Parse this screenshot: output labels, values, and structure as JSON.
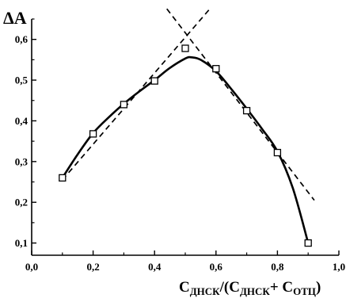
{
  "chart_data": {
    "type": "scatter",
    "ylabel": "ΔA",
    "xlabel_parts": {
      "c1": "C",
      "s1": "ДНСК",
      "mid": "/(C",
      "s2": "ДНСК",
      "plus": "+ C",
      "s3": "ОТЦ",
      "end": ")"
    },
    "xlim": [
      0.0,
      1.0
    ],
    "ylim": [
      0.07,
      0.65
    ],
    "x_ticks": [
      "0,0",
      "0,2",
      "0,4",
      "0,6",
      "0,8",
      "1,0"
    ],
    "x_tick_values": [
      0.0,
      0.2,
      0.4,
      0.6,
      0.8,
      1.0
    ],
    "y_ticks": [
      "0,1",
      "0,2",
      "0,3",
      "0,4",
      "0,5",
      "0,6"
    ],
    "y_tick_values": [
      0.1,
      0.2,
      0.3,
      0.4,
      0.5,
      0.6
    ],
    "series": [
      {
        "marker": "open-square",
        "x": [
          0.1,
          0.2,
          0.3,
          0.4,
          0.5,
          0.6,
          0.7,
          0.8,
          0.9
        ],
        "y": [
          0.26,
          0.368,
          0.44,
          0.498,
          0.578,
          0.528,
          0.425,
          0.322,
          0.1
        ]
      }
    ],
    "fit_curve": {
      "style": "solid",
      "x": [
        0.1,
        0.15,
        0.2,
        0.25,
        0.3,
        0.35,
        0.4,
        0.45,
        0.5,
        0.52,
        0.55,
        0.6,
        0.65,
        0.7,
        0.75,
        0.8,
        0.85,
        0.9
      ],
      "y": [
        0.26,
        0.318,
        0.37,
        0.408,
        0.442,
        0.472,
        0.5,
        0.53,
        0.553,
        0.556,
        0.55,
        0.522,
        0.478,
        0.43,
        0.38,
        0.325,
        0.235,
        0.1
      ]
    },
    "tangent_lines": [
      {
        "style": "dashed",
        "x": [
          0.1,
          0.58
        ],
        "y": [
          0.255,
          0.675
        ]
      },
      {
        "style": "dashed",
        "x": [
          0.44,
          0.92
        ],
        "y": [
          0.675,
          0.205
        ]
      }
    ],
    "grid": false,
    "legend": "none"
  }
}
